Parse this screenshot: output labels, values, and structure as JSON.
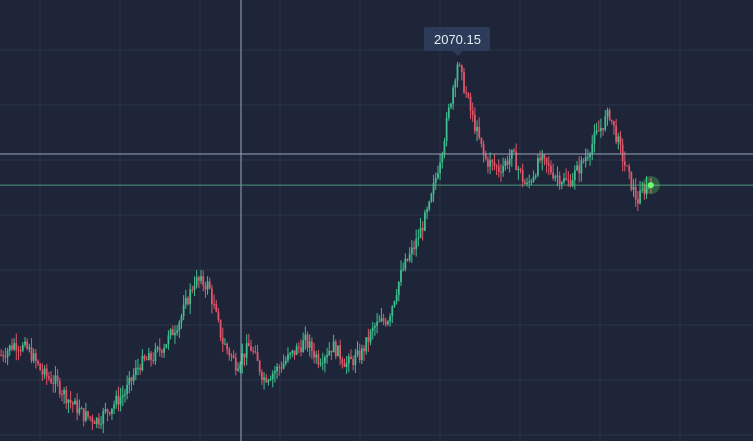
{
  "chart": {
    "max_price_label": "2070.15",
    "colors": {
      "background": "#1e2538",
      "grid": "#2b3449",
      "up": "#3fbf8f",
      "down": "#e0566a",
      "crosshair": "#9aa6bd",
      "price_line": "#4fb58f",
      "current_marker": "#6dff6d"
    }
  },
  "chart_data": {
    "type": "candlestick",
    "title": "",
    "xlabel": "",
    "ylabel": "",
    "labeled_values": {
      "max": 2070.15
    },
    "series": [
      {
        "values": [
          1440,
          1465,
          1450,
          1400,
          1380,
          1340,
          1310,
          1300,
          1330,
          1360,
          1420,
          1435,
          1470,
          1520,
          1600,
          1590,
          1470,
          1420,
          1460,
          1390,
          1410,
          1440,
          1470,
          1430,
          1460,
          1420,
          1440,
          1500,
          1520,
          1620,
          1680,
          1760,
          1900,
          2070,
          1960,
          1860,
          1840,
          1870,
          1800,
          1860,
          1830,
          1810,
          1850,
          1910,
          1960,
          1860,
          1770,
          1820
        ]
      }
    ]
  }
}
